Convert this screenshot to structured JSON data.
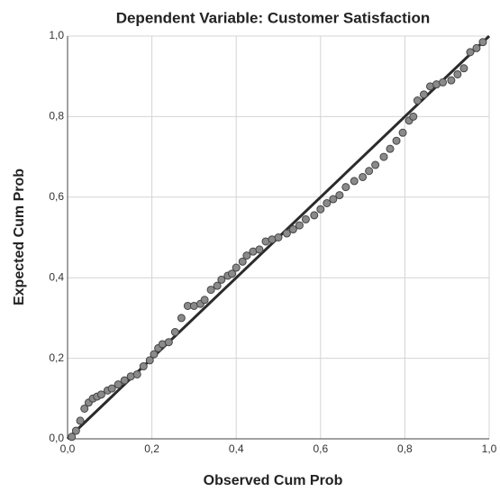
{
  "chart_data": {
    "type": "scatter",
    "title": "Dependent Variable: Customer Satisfaction",
    "x_label": "Observed Cum Prob",
    "y_label": "Expected Cum Prob",
    "xlim": [
      0,
      1
    ],
    "ylim": [
      0,
      1
    ],
    "xticks": [
      {
        "value": 0,
        "label": "0,0"
      },
      {
        "value": 0.2,
        "label": "0,2"
      },
      {
        "value": 0.4,
        "label": "0,4"
      },
      {
        "value": 0.6,
        "label": "0,6"
      },
      {
        "value": 0.8,
        "label": "0,8"
      },
      {
        "value": 1,
        "label": "1,0"
      }
    ],
    "yticks": [
      {
        "value": 0,
        "label": "0,0"
      },
      {
        "value": 0.2,
        "label": "0,2"
      },
      {
        "value": 0.4,
        "label": "0,4"
      },
      {
        "value": 0.6,
        "label": "0,6"
      },
      {
        "value": 0.8,
        "label": "0,8"
      },
      {
        "value": 1,
        "label": "1,0"
      }
    ],
    "grid": true,
    "line_color": "#2b2b2b",
    "x": [
      0.01,
      0.02,
      0.03,
      0.04,
      0.05,
      0.06,
      0.07,
      0.08,
      0.095,
      0.105,
      0.12,
      0.135,
      0.15,
      0.165,
      0.18,
      0.195,
      0.205,
      0.215,
      0.225,
      0.24,
      0.255,
      0.27,
      0.285,
      0.3,
      0.315,
      0.325,
      0.34,
      0.355,
      0.365,
      0.38,
      0.39,
      0.4,
      0.415,
      0.425,
      0.44,
      0.455,
      0.47,
      0.485,
      0.5,
      0.52,
      0.535,
      0.55,
      0.565,
      0.585,
      0.6,
      0.615,
      0.63,
      0.645,
      0.66,
      0.68,
      0.7,
      0.715,
      0.73,
      0.75,
      0.765,
      0.78,
      0.795,
      0.81,
      0.82,
      0.83,
      0.845,
      0.86,
      0.875,
      0.89,
      0.91,
      0.925,
      0.94,
      0.955,
      0.97,
      0.985
    ],
    "series": [
      {
        "color": "#8a8a8a",
        "values": [
          0.005,
          0.02,
          0.045,
          0.075,
          0.09,
          0.1,
          0.105,
          0.11,
          0.12,
          0.125,
          0.135,
          0.145,
          0.155,
          0.16,
          0.18,
          0.195,
          0.21,
          0.225,
          0.235,
          0.24,
          0.265,
          0.3,
          0.33,
          0.33,
          0.335,
          0.345,
          0.37,
          0.38,
          0.395,
          0.405,
          0.41,
          0.425,
          0.44,
          0.455,
          0.465,
          0.47,
          0.49,
          0.495,
          0.5,
          0.51,
          0.52,
          0.53,
          0.545,
          0.555,
          0.57,
          0.585,
          0.595,
          0.605,
          0.625,
          0.64,
          0.65,
          0.665,
          0.68,
          0.7,
          0.72,
          0.74,
          0.76,
          0.79,
          0.8,
          0.84,
          0.855,
          0.875,
          0.88,
          0.885,
          0.89,
          0.905,
          0.92,
          0.96,
          0.97,
          0.985
        ]
      }
    ]
  }
}
